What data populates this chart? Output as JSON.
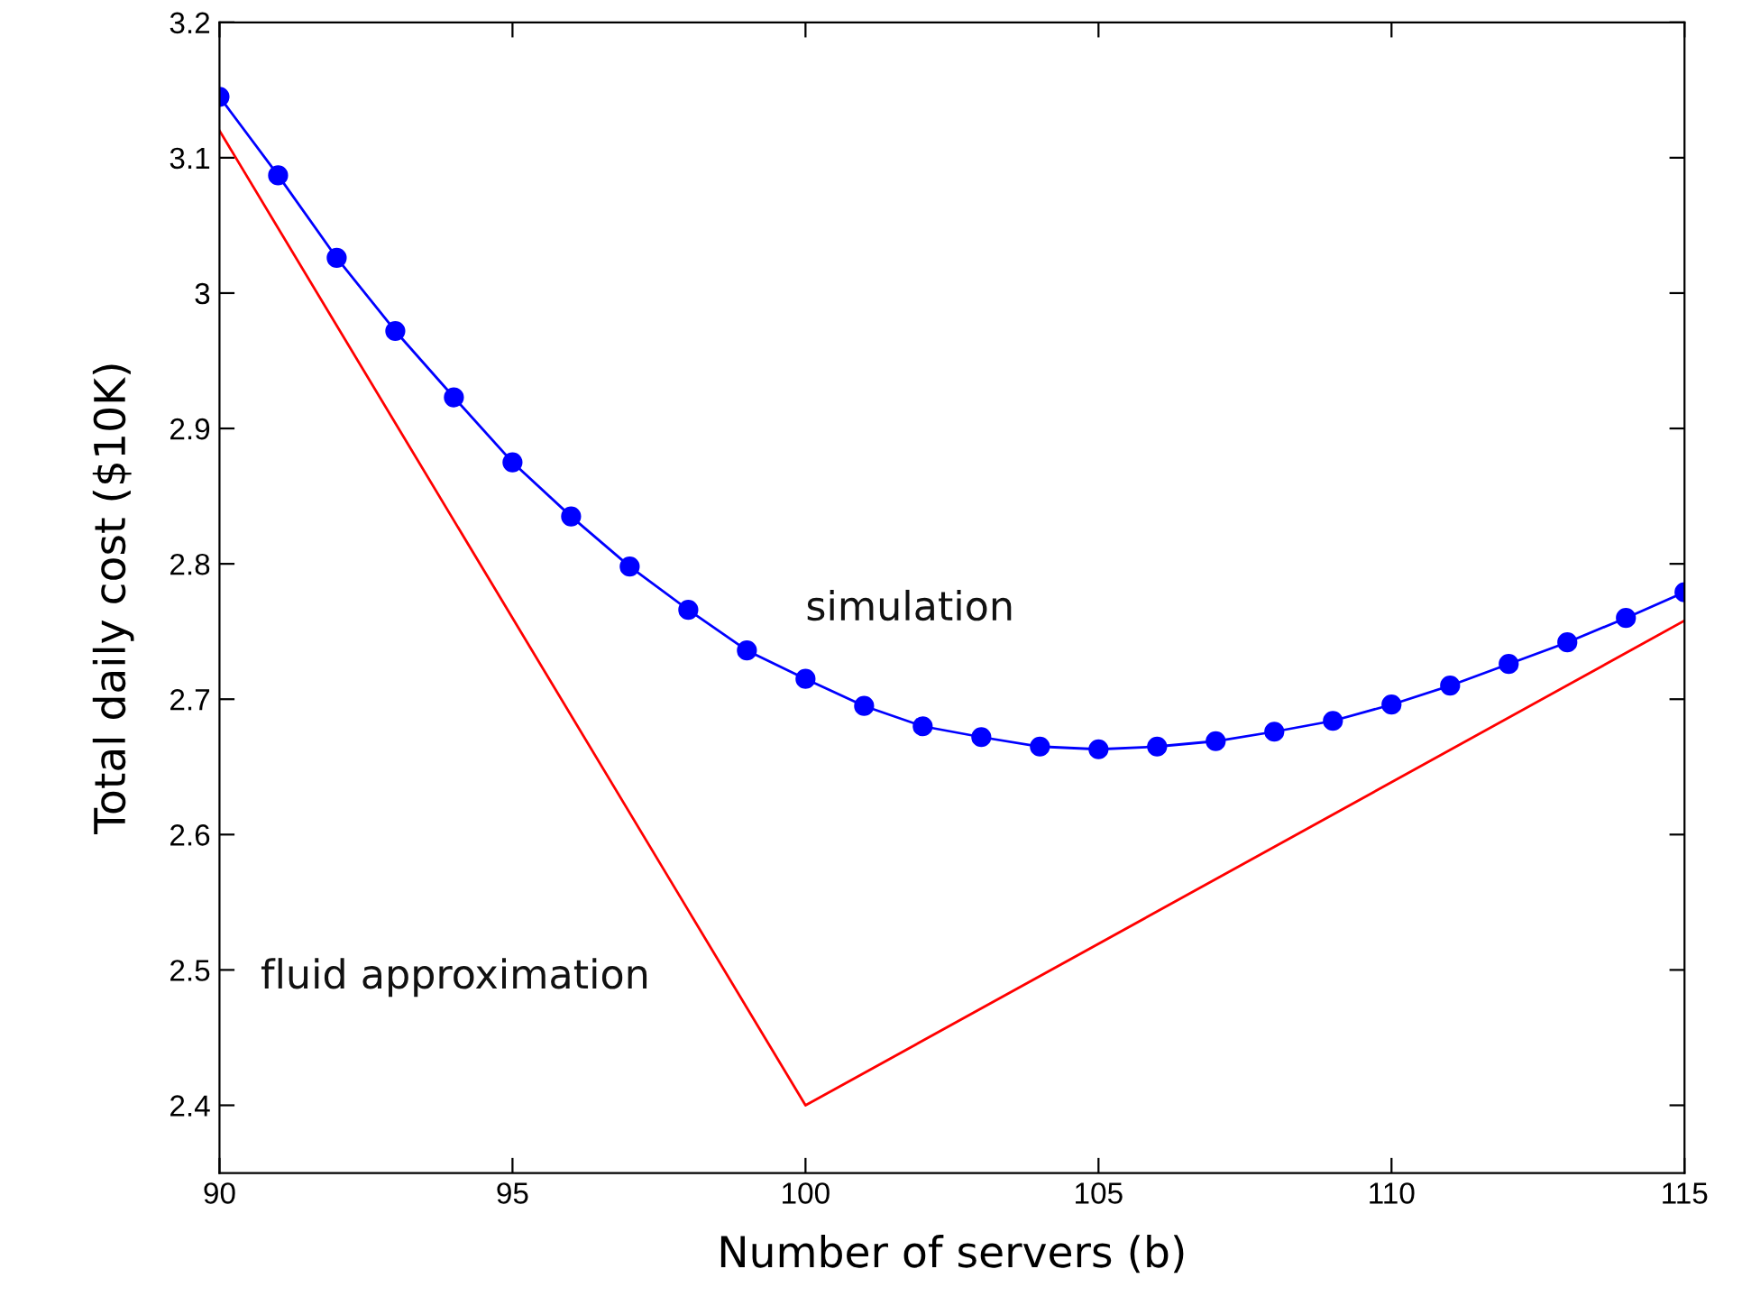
{
  "chart_data": {
    "type": "line",
    "xlabel": "Number of servers (b)",
    "ylabel": "Total daily cost ($10K)",
    "xlim": [
      90,
      115
    ],
    "xticks": [
      90,
      95,
      100,
      105,
      110,
      115
    ],
    "ylim": [
      2.35,
      3.2
    ],
    "yticks": [
      2.4,
      2.5,
      2.6,
      2.7,
      2.8,
      2.9,
      3,
      3.1,
      3.2
    ],
    "grid": false,
    "legend": false,
    "series": [
      {
        "name": "simulation",
        "color": "#0000ff",
        "marker": "circle",
        "x": [
          90,
          91,
          92,
          93,
          94,
          95,
          96,
          97,
          98,
          99,
          100,
          101,
          102,
          103,
          104,
          105,
          106,
          107,
          108,
          109,
          110,
          111,
          112,
          113,
          114,
          115
        ],
        "values": [
          3.145,
          3.087,
          3.026,
          2.972,
          2.923,
          2.875,
          2.835,
          2.798,
          2.766,
          2.736,
          2.715,
          2.695,
          2.68,
          2.672,
          2.665,
          2.663,
          2.665,
          2.669,
          2.676,
          2.684,
          2.696,
          2.71,
          2.726,
          2.742,
          2.76,
          2.779
        ]
      },
      {
        "name": "fluid approximation",
        "color": "#ff0000",
        "marker": "none",
        "x": [
          90,
          100,
          115
        ],
        "values": [
          3.12,
          2.4,
          2.758
        ]
      }
    ]
  }
}
